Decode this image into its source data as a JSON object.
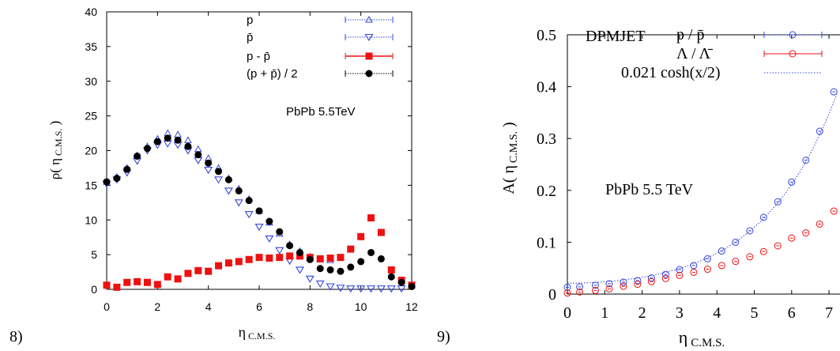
{
  "panel_labels": [
    "8)",
    "9)"
  ],
  "chart_data": [
    {
      "type": "scatter",
      "title": "",
      "xlabel_main": "η",
      "xlabel_sub": "C.M.S.",
      "ylabel_main": "ρ( η",
      "ylabel_sub": "C.M.S.",
      "ylabel_close": " )",
      "xlim": [
        0,
        12
      ],
      "ylim": [
        0,
        40
      ],
      "xticks": [
        0,
        2,
        4,
        6,
        8,
        10,
        12
      ],
      "yticks": [
        0,
        5,
        10,
        15,
        20,
        25,
        30,
        35,
        40
      ],
      "annotation": "PbPb   5.5TeV",
      "legend_placement": "top-right",
      "series": [
        {
          "name": "p",
          "marker": "triangle-up",
          "color": "#3344dd",
          "x": [
            0,
            0.4,
            0.8,
            1.2,
            1.6,
            2.0,
            2.4,
            2.8,
            3.2,
            3.6,
            4.0,
            4.4,
            4.8,
            5.2,
            5.6,
            6.0,
            6.4,
            6.8,
            7.2,
            7.6,
            8.0,
            8.4,
            8.8
          ],
          "y": [
            15.5,
            16.2,
            17.5,
            19.3,
            20.6,
            21.7,
            22.5,
            22.3,
            21.5,
            20.2,
            18.9,
            17.5,
            16.0,
            14.5,
            13.0,
            11.3,
            9.6,
            8.0,
            6.5,
            5.5,
            4.7,
            4.3,
            4.2
          ]
        },
        {
          "name": "p̄",
          "marker": "triangle-down",
          "color": "#3344dd",
          "x": [
            0,
            0.4,
            0.8,
            1.2,
            1.6,
            2.0,
            2.4,
            2.8,
            3.2,
            3.6,
            4.0,
            4.4,
            4.8,
            5.2,
            5.6,
            6.0,
            6.4,
            6.8,
            7.2,
            7.6,
            8.0,
            8.4,
            8.8,
            9.2,
            9.6,
            10.0,
            10.4,
            10.8,
            11.2,
            11.6
          ],
          "y": [
            15.2,
            15.8,
            16.8,
            18.5,
            20.0,
            20.8,
            21.0,
            20.8,
            20.0,
            18.6,
            17.2,
            15.8,
            14.2,
            12.5,
            10.8,
            9.0,
            7.3,
            5.6,
            4.1,
            2.8,
            1.5,
            0.8,
            0.4,
            0.2,
            0.1,
            0.1,
            0.1,
            0.1,
            0.1,
            0.1
          ]
        },
        {
          "name": "p - p̄",
          "marker": "square",
          "color": "#ee1111",
          "x": [
            0,
            0.4,
            0.8,
            1.2,
            1.6,
            2.0,
            2.4,
            2.8,
            3.2,
            3.6,
            4.0,
            4.4,
            4.8,
            5.2,
            5.6,
            6.0,
            6.4,
            6.8,
            7.2,
            7.6,
            8.0,
            8.4,
            8.8,
            9.2,
            9.6,
            10.0,
            10.4,
            10.8,
            11.2,
            11.6,
            12.0
          ],
          "y": [
            0.6,
            0.3,
            1.0,
            1.1,
            1.0,
            0.7,
            1.8,
            1.5,
            2.3,
            2.7,
            2.6,
            3.4,
            3.8,
            4.0,
            4.3,
            4.6,
            4.5,
            4.6,
            4.8,
            4.8,
            4.6,
            4.4,
            4.5,
            4.6,
            5.8,
            7.6,
            10.3,
            8.2,
            2.8,
            1.3,
            0.6
          ]
        },
        {
          "name": "(p + p̄) / 2",
          "marker": "circle",
          "color": "#000000",
          "x": [
            0,
            0.4,
            0.8,
            1.2,
            1.6,
            2.0,
            2.4,
            2.8,
            3.2,
            3.6,
            4.0,
            4.4,
            4.8,
            5.2,
            5.6,
            6.0,
            6.4,
            6.8,
            7.2,
            7.6,
            8.0,
            8.4,
            8.8,
            9.2,
            9.6,
            10.0,
            10.4,
            10.8,
            11.2,
            11.6,
            12.0
          ],
          "y": [
            15.5,
            16.0,
            17.3,
            19.2,
            20.3,
            21.3,
            21.8,
            21.5,
            20.6,
            19.4,
            18.2,
            17.0,
            15.8,
            14.2,
            12.8,
            11.3,
            9.8,
            8.3,
            6.3,
            5.3,
            4.3,
            3.0,
            2.8,
            2.6,
            3.2,
            4.0,
            5.3,
            4.4,
            1.8,
            1.0,
            0.4
          ]
        }
      ]
    },
    {
      "type": "scatter",
      "title": "",
      "xlabel_main": "η",
      "xlabel_sub": "C.M.S.",
      "ylabel_main": "A( η",
      "ylabel_sub": "C.M.S.",
      "ylabel_close": " )",
      "xlim": [
        0,
        8
      ],
      "ylim": [
        0,
        0.5
      ],
      "xticks": [
        0,
        1,
        2,
        3,
        4,
        5,
        6,
        7
      ],
      "yticks": [
        0,
        0.1,
        0.2,
        0.3,
        0.4,
        0.5
      ],
      "ytick_labels": [
        "0",
        "0.1",
        "0.2",
        "0.3",
        "0.4",
        "0.5"
      ],
      "annotation": "PbPb   5.5 TeV",
      "legend_title": "DPMJET",
      "legend_placement": "top-left",
      "series": [
        {
          "name": "p / p̄",
          "marker": "open-circle",
          "color": "#3344dd",
          "x": [
            0,
            0.33,
            0.75,
            1.12,
            1.5,
            1.88,
            2.25,
            2.63,
            3.0,
            3.38,
            3.75,
            4.13,
            4.5,
            4.88,
            5.25,
            5.63,
            6.0,
            6.38,
            6.75,
            7.13
          ],
          "y": [
            0.013,
            0.014,
            0.017,
            0.02,
            0.023,
            0.026,
            0.031,
            0.038,
            0.047,
            0.055,
            0.068,
            0.083,
            0.1,
            0.122,
            0.148,
            0.178,
            0.216,
            0.258,
            0.314,
            0.39
          ]
        },
        {
          "name": "Λ / Λ̄",
          "marker": "open-circle",
          "color": "#ee1111",
          "x": [
            0,
            0.33,
            0.75,
            1.12,
            1.5,
            1.88,
            2.25,
            2.63,
            3.0,
            3.38,
            3.75,
            4.13,
            4.5,
            4.88,
            5.25,
            5.63,
            6.0,
            6.38,
            6.75,
            7.13
          ],
          "y": [
            0.002,
            0.004,
            0.007,
            0.01,
            0.015,
            0.019,
            0.024,
            0.03,
            0.036,
            0.042,
            0.048,
            0.055,
            0.063,
            0.072,
            0.082,
            0.093,
            0.108,
            0.118,
            0.135,
            0.16
          ]
        },
        {
          "name": "0.021 cosh(x/2)",
          "marker": "dotted-line",
          "color": "#3344dd",
          "formula": "0.021 cosh(x/2)"
        }
      ]
    }
  ]
}
